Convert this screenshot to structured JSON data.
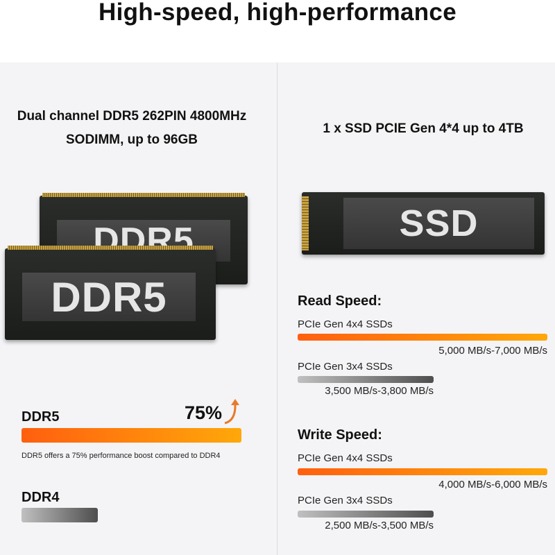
{
  "title": "High-speed, high-performance",
  "memory": {
    "heading_line1": "Dual channel DDR5 262PIN 4800MHz",
    "heading_line2": "SODIMM, up to 96GB",
    "module_label": "DDR5",
    "ddr5_label": "DDR5",
    "boost_value": "75%",
    "ddr5_note": "DDR5 offers a 75% performance boost compared to DDR4",
    "ddr4_label": "DDR4"
  },
  "storage": {
    "heading": "1 x SSD PCIE Gen 4*4 up to 4TB",
    "ssd_label": "SSD",
    "read": {
      "title": "Read Speed:",
      "rows": [
        {
          "label": "PCIe Gen 4x4 SSDs",
          "value": "5,000 MB/s-7,000 MB/s"
        },
        {
          "label": "PCIe Gen 3x4 SSDs",
          "value": "3,500 MB/s-3,800 MB/s"
        }
      ]
    },
    "write": {
      "title": "Write Speed:",
      "rows": [
        {
          "label": "PCIe Gen 4x4 SSDs",
          "value": "4,000 MB/s-6,000 MB/s"
        },
        {
          "label": "PCIe Gen 3x4 SSDs",
          "value": "2,500 MB/s-3,500 MB/s"
        }
      ]
    }
  },
  "colors": {
    "accent_orange": "#ff7a0c",
    "gray_bar": "#6e6e6e"
  }
}
